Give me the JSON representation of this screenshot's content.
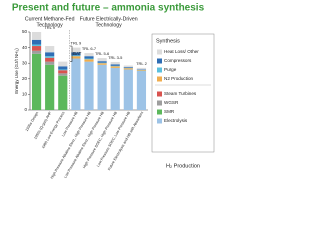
{
  "chart_data": {
    "type": "stacked_bar",
    "title": "Present and future – ammonia synthesis",
    "group_labels": [
      [
        "Current Methane-Fed",
        "Technology"
      ],
      [
        "Future Electrically-Driven",
        "Technology"
      ]
    ],
    "y_label": "Energy Use (GJ/t NH₃)",
    "categories": [
      "1930s Design",
      "1950s (Q-gas) AHP",
      "1980 Low Energy Process",
      "Low Pressure HB",
      "High Pressure Alkaline Elect., High Pressure HB",
      "Low Pressure Alkaline Elect., High Pressure HB",
      "High Pressure SOEC, High Pressure HB",
      "Low Pressure SOEC, Low Pressure HB",
      "Future Electrolysis and HB with Absorbent"
    ],
    "series": [
      {
        "name": "Electrolysis",
        "color": "#9dc3e6",
        "values": [
          0,
          0,
          0,
          33,
          31,
          29,
          27,
          26,
          25
        ]
      },
      {
        "name": "SMR",
        "color": "#5cb85c",
        "values": [
          36,
          29,
          22,
          0,
          0,
          0,
          0,
          0,
          0
        ]
      },
      {
        "name": "WGSR",
        "color": "#9e9e9e",
        "values": [
          2,
          2,
          1.5,
          0,
          0,
          0,
          0,
          0,
          0
        ]
      },
      {
        "name": "Steam Turbines",
        "color": "#d9534f",
        "values": [
          3,
          2.5,
          2,
          0,
          0,
          0,
          0,
          0,
          0
        ]
      },
      {
        "name": "N2 Production",
        "color": "#f0ad4e",
        "values": [
          0,
          0,
          0,
          1.5,
          1.5,
          1,
          1,
          0.8,
          0.5
        ]
      },
      {
        "name": "Purge",
        "color": "#5bc0de",
        "values": [
          1,
          1,
          0.5,
          0.5,
          0.5,
          0.3,
          0.3,
          0.2,
          0.2
        ]
      },
      {
        "name": "Compressors",
        "color": "#2e6db4",
        "values": [
          3,
          2.5,
          2,
          2,
          1.5,
          1,
          1,
          0.5,
          0.3
        ]
      },
      {
        "name": "Heat Loss/ Other",
        "color": "#dcdcdc",
        "values": [
          5,
          4,
          3,
          3,
          2,
          2,
          1.5,
          1,
          1
        ]
      }
    ],
    "ylim": [
      0,
      50
    ],
    "yticks": [
      0,
      10,
      20,
      30,
      40,
      50
    ],
    "trl_labels": [
      "TRL 9",
      "TRL 6-7",
      "TRL 5-6",
      "TRL 3-5",
      "TRL 2"
    ],
    "bat_label": "BAT",
    "legend_titles": [
      "Synthesis",
      "H₂ Production"
    ]
  }
}
